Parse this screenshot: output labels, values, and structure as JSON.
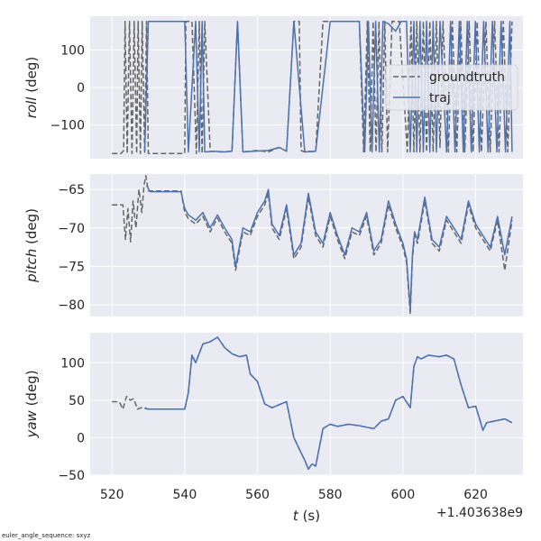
{
  "footnote": "euler_angle_sequence: sxyz",
  "xlabel_var": "t",
  "xlabel_unit": " (s)",
  "x_offset_label": "+1.403638e9",
  "x_ticks": [
    520,
    540,
    560,
    580,
    600,
    620
  ],
  "legend": {
    "groundtruth": "groundtruth",
    "traj": "traj"
  },
  "colors": {
    "groundtruth": "#666666",
    "traj": "#4c72b0",
    "panel_bg": "#eaeaf2",
    "grid": "#ffffff"
  },
  "chart_data": [
    {
      "type": "line",
      "ylabel_var": "roll",
      "ylabel_unit": " (deg)",
      "xlim": [
        514,
        633
      ],
      "ylim": [
        -190,
        190
      ],
      "y_ticks": [
        -100,
        0,
        100
      ],
      "legend_position": "upper-right",
      "series": [
        {
          "name": "groundtruth",
          "style": "dashed",
          "x": [
            520,
            522.5,
            523.2,
            523.6,
            524.2,
            524.8,
            525.5,
            526.1,
            526.8,
            527.2,
            527.8,
            528.3,
            529,
            529.5,
            530,
            533,
            540,
            540.3,
            542,
            543.2,
            544,
            544.8,
            545.5,
            547,
            550,
            553,
            554.5,
            556,
            558,
            560,
            563,
            566,
            568,
            570,
            571.5,
            572,
            573,
            574,
            576,
            578,
            581,
            585,
            588,
            589.2,
            590.2,
            591,
            591.8,
            592.6,
            593.4,
            594.2,
            595,
            595.8,
            597,
            599,
            601.2,
            602.2,
            603,
            603.8,
            604.7,
            605.6,
            606.5,
            607.4,
            608.3,
            609.2,
            610.2,
            611,
            612.5,
            613.6,
            614.8,
            615.9,
            617,
            618.2,
            619.3,
            620.4,
            621.6,
            622.8,
            624,
            625.2,
            626.4,
            627.6,
            628.8,
            630
          ],
          "y": [
            -176,
            -176,
            -168,
            176,
            -176,
            176,
            -176,
            176,
            -176,
            176,
            -176,
            176,
            -176,
            176,
            -176,
            -176,
            -176,
            176,
            176,
            -176,
            176,
            -176,
            176,
            -170,
            -172,
            -170,
            176,
            -172,
            -170,
            -168,
            -172,
            -160,
            -170,
            176,
            176,
            -168,
            -172,
            -170,
            -172,
            176,
            176,
            176,
            176,
            -172,
            176,
            -172,
            176,
            -172,
            176,
            -172,
            176,
            -172,
            176,
            176,
            -172,
            176,
            -172,
            176,
            -172,
            176,
            -172,
            176,
            -172,
            176,
            -160,
            176,
            -172,
            176,
            -172,
            176,
            -172,
            176,
            -172,
            176,
            -172,
            176,
            -172,
            176,
            -172,
            176,
            -172,
            176
          ]
        },
        {
          "name": "traj",
          "style": "solid",
          "x": [
            529,
            530,
            540,
            541,
            543,
            544,
            544.8,
            545.5,
            548,
            551,
            553,
            554.5,
            556,
            559,
            563,
            566,
            568,
            570,
            573,
            576,
            580,
            584,
            588,
            589.5,
            590.5,
            591.5,
            592.5,
            593.5,
            594.5,
            596,
            598,
            599.5,
            601,
            602,
            603,
            603.8,
            604.7,
            605.6,
            606.5,
            607.4,
            608.3,
            609.2,
            610.2,
            612,
            613.1,
            614.3,
            615.5,
            616.6,
            617.7,
            618.8,
            619.9,
            621,
            622.2,
            623.4,
            624.6,
            625.8,
            627,
            628.2,
            629.4,
            630
          ],
          "y": [
            -172,
            176,
            176,
            -172,
            176,
            -172,
            176,
            -172,
            -170,
            -172,
            -170,
            176,
            -172,
            -170,
            -168,
            -160,
            -170,
            176,
            -172,
            -170,
            176,
            176,
            176,
            -172,
            176,
            -172,
            176,
            -172,
            176,
            170,
            150,
            176,
            176,
            -172,
            176,
            -172,
            176,
            -172,
            176,
            -172,
            176,
            -172,
            176,
            -172,
            176,
            -172,
            176,
            -172,
            176,
            -172,
            176,
            -172,
            176,
            -172,
            176,
            -172,
            176,
            -172,
            176,
            -172
          ]
        }
      ]
    },
    {
      "type": "line",
      "ylabel_var": "pitch",
      "ylabel_unit": " (deg)",
      "xlim": [
        514,
        633
      ],
      "ylim": [
        -81.5,
        -63
      ],
      "y_ticks": [
        -80,
        -75,
        -70,
        -65
      ],
      "series": [
        {
          "name": "groundtruth",
          "style": "dashed",
          "x": [
            520,
            522,
            523,
            523.7,
            524.4,
            525.1,
            525.8,
            526.6,
            527.4,
            528.2,
            528.8,
            529.3,
            530,
            535,
            539,
            540,
            541,
            543,
            545,
            547,
            549,
            551,
            553,
            554,
            556,
            558,
            560,
            562,
            563,
            564,
            566,
            568,
            570,
            572,
            574,
            576,
            578,
            580,
            582,
            584,
            586,
            588,
            590,
            592,
            594,
            596,
            598,
            600,
            601,
            602,
            602.6,
            603.2,
            604,
            606,
            608,
            610,
            612,
            614,
            616,
            618,
            620,
            622,
            624,
            626,
            628,
            630
          ],
          "y": [
            -67,
            -67,
            -67,
            -71.5,
            -67.5,
            -71.8,
            -66.5,
            -70,
            -65,
            -68,
            -64.5,
            -63.2,
            -65.2,
            -65.2,
            -65.2,
            -68,
            -68.8,
            -69.5,
            -68.5,
            -70.5,
            -68.7,
            -70.5,
            -72,
            -75.5,
            -70.5,
            -71,
            -68.5,
            -67,
            -65.5,
            -70,
            -71.5,
            -67.5,
            -74,
            -72.5,
            -66,
            -71,
            -72.5,
            -68.5,
            -71.5,
            -74,
            -70.5,
            -71,
            -68.5,
            -73.5,
            -72,
            -67,
            -70,
            -72.5,
            -74.5,
            -81.2,
            -74,
            -71,
            -72,
            -66.5,
            -72,
            -73,
            -69,
            -70.5,
            -72,
            -67,
            -70,
            -71.5,
            -73,
            -69,
            -75.5,
            -69
          ]
        },
        {
          "name": "traj",
          "style": "solid",
          "x": [
            529.5,
            530.5,
            535,
            539,
            540,
            541,
            543,
            545,
            547,
            549,
            551,
            553,
            554,
            556,
            558,
            560,
            562,
            563,
            564,
            566,
            568,
            570,
            572,
            574,
            576,
            578,
            580,
            582,
            584,
            586,
            588,
            590,
            592,
            594,
            596,
            598,
            600,
            601,
            602,
            602.6,
            603.2,
            604,
            606,
            608,
            610,
            612,
            614,
            616,
            618,
            620,
            622,
            624,
            626,
            628,
            630
          ],
          "y": [
            -64.5,
            -65.3,
            -65.3,
            -65.3,
            -67.5,
            -68.3,
            -69,
            -68,
            -70,
            -68.3,
            -70,
            -71.5,
            -75,
            -70,
            -70.5,
            -68,
            -66.5,
            -65,
            -69.5,
            -71,
            -67,
            -73.5,
            -72,
            -65.5,
            -70.5,
            -72,
            -68,
            -71,
            -73.5,
            -70,
            -70.5,
            -68,
            -73,
            -71.5,
            -66.5,
            -69.5,
            -72,
            -74,
            -80.5,
            -73.5,
            -70.5,
            -71.5,
            -66,
            -71.5,
            -72.5,
            -68.5,
            -70,
            -71.5,
            -66.5,
            -69.5,
            -71,
            -72.5,
            -68.5,
            -73.5,
            -68.5
          ]
        }
      ]
    },
    {
      "type": "line",
      "ylabel_var": "yaw",
      "ylabel_unit": " (deg)",
      "xlim": [
        514,
        633
      ],
      "ylim": [
        -50,
        140
      ],
      "y_ticks": [
        -50,
        0,
        50,
        100
      ],
      "series": [
        {
          "name": "groundtruth",
          "style": "dashed",
          "x": [
            520,
            522,
            523,
            524,
            525,
            526,
            527,
            528,
            530,
            535,
            540,
            541,
            542,
            543,
            545,
            547,
            549,
            551,
            553,
            555,
            557,
            558,
            560,
            562,
            564,
            566,
            568,
            570,
            571,
            572,
            573,
            574,
            575,
            576,
            578,
            579,
            580,
            582,
            585,
            588,
            590,
            592,
            594,
            596,
            598,
            600,
            602,
            603,
            604,
            605,
            607,
            610,
            612,
            614,
            616,
            618,
            620,
            622,
            623,
            625,
            628,
            630
          ],
          "y": [
            48,
            48,
            38,
            55,
            50,
            52,
            38,
            40,
            38,
            38,
            38,
            60,
            110,
            100,
            125,
            128,
            134,
            120,
            112,
            108,
            110,
            85,
            75,
            45,
            40,
            44,
            48,
            0,
            -10,
            -20,
            -30,
            -42,
            -35,
            -38,
            12,
            15,
            18,
            15,
            18,
            16,
            14,
            12,
            22,
            25,
            50,
            55,
            40,
            95,
            108,
            105,
            110,
            108,
            110,
            105,
            70,
            40,
            42,
            10,
            20,
            22,
            25,
            20
          ]
        },
        {
          "name": "traj",
          "style": "solid",
          "x": [
            529,
            530,
            535,
            540,
            541,
            542,
            543,
            545,
            547,
            549,
            551,
            553,
            555,
            557,
            558,
            560,
            562,
            564,
            566,
            568,
            570,
            571,
            572,
            573,
            574,
            575,
            576,
            578,
            579,
            580,
            582,
            585,
            588,
            590,
            592,
            594,
            596,
            598,
            600,
            602,
            603,
            604,
            605,
            607,
            610,
            612,
            614,
            616,
            618,
            620,
            622,
            623,
            625,
            628,
            630
          ],
          "y": [
            40,
            38,
            38,
            38,
            60,
            110,
            100,
            125,
            128,
            134,
            120,
            112,
            108,
            110,
            85,
            75,
            45,
            40,
            44,
            48,
            0,
            -10,
            -20,
            -30,
            -42,
            -35,
            -38,
            12,
            15,
            18,
            15,
            18,
            16,
            14,
            12,
            22,
            25,
            50,
            55,
            40,
            95,
            108,
            105,
            110,
            108,
            110,
            105,
            70,
            40,
            42,
            10,
            20,
            22,
            25,
            20
          ]
        }
      ]
    }
  ]
}
